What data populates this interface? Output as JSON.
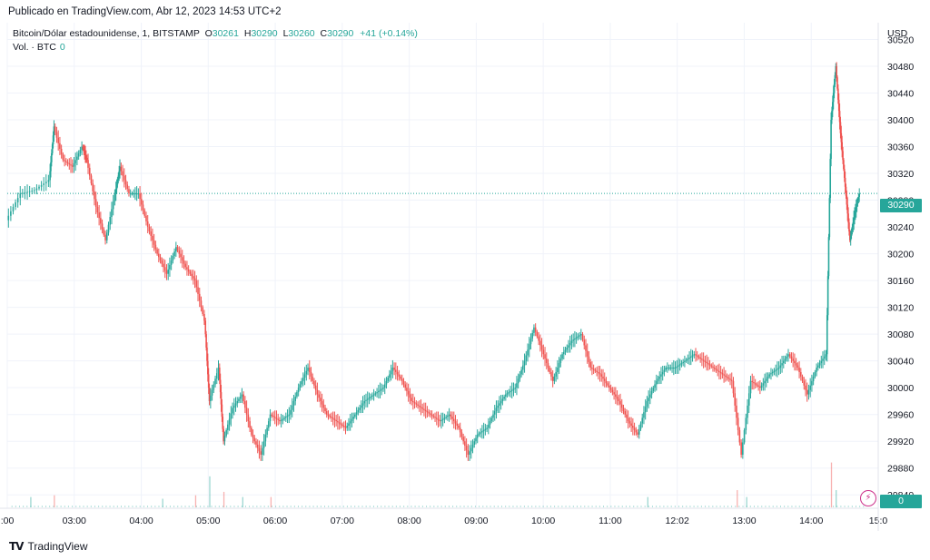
{
  "published": "Publicado en TradingView.com, Abr 12, 2023 14:53 UTC+2",
  "legend": {
    "symbol": "Bitcoin/Dólar estadounidense, 1, BITSTAMP",
    "o_label": "O",
    "o_value": "30261",
    "h_label": "H",
    "h_value": "30290",
    "l_label": "L",
    "l_value": "30260",
    "c_label": "C",
    "c_value": "30290",
    "change": "+41 (+0.14%)",
    "vol_label": "Vol. · BTC",
    "vol_value": "0"
  },
  "currency": "USD",
  "last_price": "30290",
  "last_volume": "0",
  "footer_brand": "TradingView",
  "colors": {
    "up": "#26a69a",
    "down": "#ef5350",
    "grid": "#f0f3fa"
  },
  "chart_data": {
    "type": "candlestick",
    "y_ticks": [
      29840,
      29880,
      29920,
      29960,
      30000,
      30040,
      30080,
      30120,
      30160,
      30200,
      30240,
      30280,
      30320,
      30360,
      30400,
      30440,
      30480,
      30520
    ],
    "x_ticks": [
      ":00",
      "03:00",
      "04:00",
      "05:00",
      "06:00",
      "07:00",
      "08:00",
      "09:00",
      "10:00",
      "11:00",
      "12:02",
      "13:00",
      "14:00",
      "15:0"
    ],
    "ylim": [
      29820,
      30545
    ],
    "last_price_line": 30290,
    "series": [
      {
        "t": 0,
        "v": 30250
      },
      {
        "t": 0.3,
        "v": 30290
      },
      {
        "t": 0.6,
        "v": 30295
      },
      {
        "t": 0.9,
        "v": 30310
      },
      {
        "t": 1.0,
        "v": 30390
      },
      {
        "t": 1.2,
        "v": 30340
      },
      {
        "t": 1.4,
        "v": 30330
      },
      {
        "t": 1.6,
        "v": 30360
      },
      {
        "t": 1.7,
        "v": 30340
      },
      {
        "t": 1.9,
        "v": 30270
      },
      {
        "t": 2.1,
        "v": 30220
      },
      {
        "t": 2.3,
        "v": 30290
      },
      {
        "t": 2.4,
        "v": 30330
      },
      {
        "t": 2.6,
        "v": 30290
      },
      {
        "t": 2.8,
        "v": 30290
      },
      {
        "t": 3.0,
        "v": 30240
      },
      {
        "t": 3.2,
        "v": 30200
      },
      {
        "t": 3.4,
        "v": 30170
      },
      {
        "t": 3.6,
        "v": 30210
      },
      {
        "t": 3.8,
        "v": 30180
      },
      {
        "t": 4.0,
        "v": 30160
      },
      {
        "t": 4.2,
        "v": 30100
      },
      {
        "t": 4.3,
        "v": 29980
      },
      {
        "t": 4.5,
        "v": 30030
      },
      {
        "t": 4.6,
        "v": 29920
      },
      {
        "t": 4.8,
        "v": 29970
      },
      {
        "t": 5.0,
        "v": 29990
      },
      {
        "t": 5.2,
        "v": 29930
      },
      {
        "t": 5.4,
        "v": 29900
      },
      {
        "t": 5.6,
        "v": 29960
      },
      {
        "t": 5.8,
        "v": 29950
      },
      {
        "t": 6.0,
        "v": 29960
      },
      {
        "t": 6.2,
        "v": 30000
      },
      {
        "t": 6.4,
        "v": 30030
      },
      {
        "t": 6.6,
        "v": 29990
      },
      {
        "t": 6.8,
        "v": 29960
      },
      {
        "t": 7.0,
        "v": 29950
      },
      {
        "t": 7.2,
        "v": 29940
      },
      {
        "t": 7.4,
        "v": 29960
      },
      {
        "t": 7.6,
        "v": 29980
      },
      {
        "t": 7.8,
        "v": 29990
      },
      {
        "t": 8.0,
        "v": 30000
      },
      {
        "t": 8.2,
        "v": 30030
      },
      {
        "t": 8.4,
        "v": 30010
      },
      {
        "t": 8.6,
        "v": 29980
      },
      {
        "t": 8.8,
        "v": 29970
      },
      {
        "t": 9.0,
        "v": 29960
      },
      {
        "t": 9.2,
        "v": 29950
      },
      {
        "t": 9.4,
        "v": 29960
      },
      {
        "t": 9.6,
        "v": 29940
      },
      {
        "t": 9.8,
        "v": 29900
      },
      {
        "t": 10.0,
        "v": 29930
      },
      {
        "t": 10.2,
        "v": 29940
      },
      {
        "t": 10.4,
        "v": 29970
      },
      {
        "t": 10.6,
        "v": 29990
      },
      {
        "t": 10.8,
        "v": 30000
      },
      {
        "t": 11.0,
        "v": 30040
      },
      {
        "t": 11.2,
        "v": 30090
      },
      {
        "t": 11.4,
        "v": 30050
      },
      {
        "t": 11.6,
        "v": 30010
      },
      {
        "t": 11.8,
        "v": 30050
      },
      {
        "t": 12.0,
        "v": 30070
      },
      {
        "t": 12.2,
        "v": 30080
      },
      {
        "t": 12.4,
        "v": 30030
      },
      {
        "t": 12.6,
        "v": 30020
      },
      {
        "t": 12.8,
        "v": 30000
      },
      {
        "t": 13.0,
        "v": 29980
      },
      {
        "t": 13.2,
        "v": 29950
      },
      {
        "t": 13.4,
        "v": 29930
      },
      {
        "t": 13.6,
        "v": 29980
      },
      {
        "t": 13.8,
        "v": 30010
      },
      {
        "t": 14.0,
        "v": 30030
      },
      {
        "t": 14.2,
        "v": 30030
      },
      {
        "t": 14.4,
        "v": 30040
      },
      {
        "t": 14.6,
        "v": 30050
      },
      {
        "t": 14.8,
        "v": 30040
      },
      {
        "t": 15.0,
        "v": 30030
      },
      {
        "t": 15.2,
        "v": 30020
      },
      {
        "t": 15.4,
        "v": 30010
      },
      {
        "t": 15.6,
        "v": 29900
      },
      {
        "t": 15.8,
        "v": 30010
      },
      {
        "t": 16.0,
        "v": 30000
      },
      {
        "t": 16.2,
        "v": 30020
      },
      {
        "t": 16.4,
        "v": 30030
      },
      {
        "t": 16.6,
        "v": 30050
      },
      {
        "t": 16.8,
        "v": 30030
      },
      {
        "t": 17.0,
        "v": 29990
      },
      {
        "t": 17.2,
        "v": 30030
      },
      {
        "t": 17.4,
        "v": 30050
      },
      {
        "t": 17.5,
        "v": 30400
      },
      {
        "t": 17.6,
        "v": 30480
      },
      {
        "t": 17.7,
        "v": 30380
      },
      {
        "t": 17.8,
        "v": 30300
      },
      {
        "t": 17.9,
        "v": 30220
      },
      {
        "t": 18.0,
        "v": 30260
      },
      {
        "t": 18.1,
        "v": 30290
      }
    ],
    "volume": [
      {
        "t": 0.5,
        "v": 0.3
      },
      {
        "t": 1.0,
        "v": 0.35
      },
      {
        "t": 3.3,
        "v": 0.25
      },
      {
        "t": 4.0,
        "v": 0.35
      },
      {
        "t": 4.3,
        "v": 0.9
      },
      {
        "t": 4.6,
        "v": 0.45
      },
      {
        "t": 5.0,
        "v": 0.3
      },
      {
        "t": 5.6,
        "v": 0.3
      },
      {
        "t": 13.6,
        "v": 0.3
      },
      {
        "t": 15.5,
        "v": 0.5
      },
      {
        "t": 15.7,
        "v": 0.3
      },
      {
        "t": 17.5,
        "v": 1.3
      },
      {
        "t": 17.6,
        "v": 0.5
      }
    ]
  }
}
